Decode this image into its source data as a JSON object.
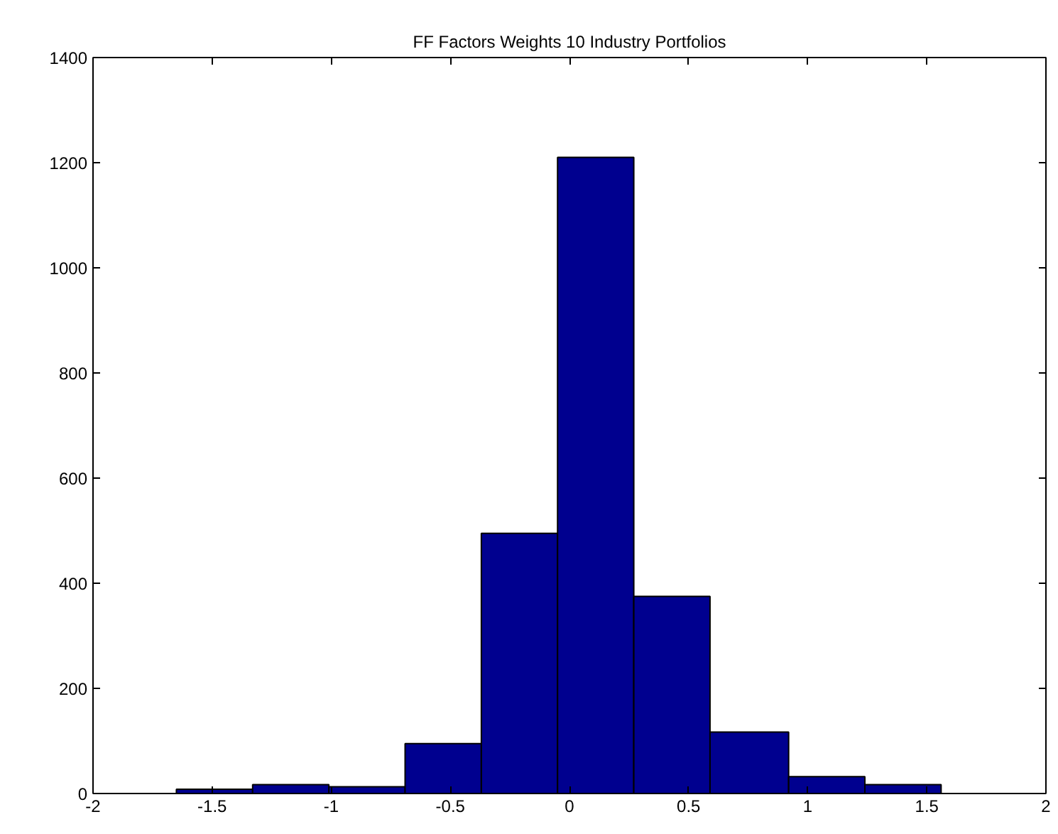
{
  "chart_data": {
    "type": "histogram",
    "title": "FF Factors Weights 10 Industry Portfolios",
    "bins": [
      -1.65,
      -1.33,
      -1.01,
      -0.69,
      -0.37,
      -0.05,
      0.27,
      0.59,
      0.92,
      1.24,
      1.56
    ],
    "values": [
      8,
      17,
      13,
      95,
      495,
      1210,
      375,
      117,
      32,
      17
    ],
    "color": "#00008f",
    "xlim": [
      -2,
      2
    ],
    "ylim": [
      0,
      1400
    ],
    "xticks": [
      -2,
      -1.5,
      -1,
      -0.5,
      0,
      0.5,
      1,
      1.5,
      2
    ],
    "yticks": [
      0,
      200,
      400,
      600,
      800,
      1000,
      1200,
      1400
    ],
    "grid": false
  }
}
